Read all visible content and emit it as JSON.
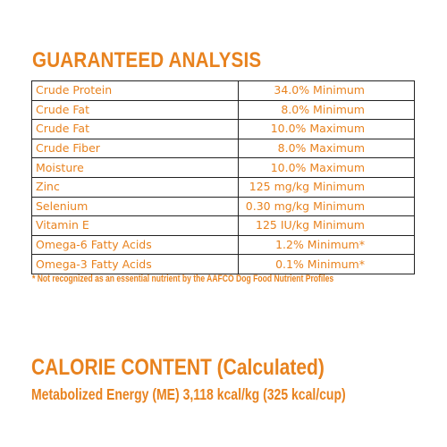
{
  "guaranteed_analysis": {
    "title": "GUARANTEED ANALYSIS",
    "rows": [
      {
        "nutrient": "Crude Protein",
        "value": "34.0% Minimum"
      },
      {
        "nutrient": "Crude Fat",
        "value": "8.0% Minimum"
      },
      {
        "nutrient": "Crude Fat",
        "value": "10.0% Maximum"
      },
      {
        "nutrient": "Crude Fiber",
        "value": "8.0%  Maximum"
      },
      {
        "nutrient": "Moisture",
        "value": "10.0% Maximum"
      },
      {
        "nutrient": "Zinc",
        "value": "125 mg/kg Minimum"
      },
      {
        "nutrient": "Selenium",
        "value": "0.30 mg/kg Minimum"
      },
      {
        "nutrient": "Vitamin E",
        "value": "125 IU/kg Minimum"
      },
      {
        "nutrient": "Omega-6 Fatty Acids",
        "value": "1.2% Minimum*"
      },
      {
        "nutrient": "Omega-3 Fatty Acids",
        "value": "0.1% Minimum*"
      }
    ],
    "footnote": "* Not recognized as an essential nutrient by the AAFCO Dog Food Nutrient Profiles"
  },
  "calorie_content": {
    "title": "CALORIE CONTENT (Calculated)",
    "detail": "Metabolized Energy (ME) 3,118 kcal/kg (325 kcal/cup)"
  },
  "colors": {
    "text": "#E8821E",
    "table_border": "#222222",
    "background": "#FFFFFF"
  }
}
